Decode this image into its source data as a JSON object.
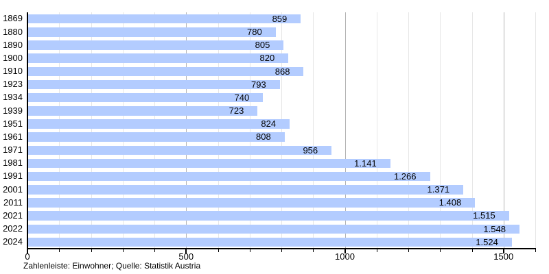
{
  "chart_data": {
    "type": "bar",
    "orientation": "horizontal",
    "title": "",
    "xlabel": "",
    "ylabel": "",
    "categories": [
      "1869",
      "1880",
      "1890",
      "1900",
      "1910",
      "1923",
      "1934",
      "1939",
      "1951",
      "1961",
      "1971",
      "1981",
      "1991",
      "2001",
      "2011",
      "2021",
      "2022",
      "2024"
    ],
    "values": [
      859,
      780,
      805,
      820,
      868,
      793,
      740,
      723,
      824,
      808,
      956,
      1141,
      1266,
      1371,
      1408,
      1515,
      1548,
      1524
    ],
    "value_labels": [
      "859",
      "780",
      "805",
      "820",
      "868",
      "793",
      "740",
      "723",
      "824",
      "808",
      "956",
      "1.141",
      "1.266",
      "1.371",
      "1.408",
      "1.515",
      "1.548",
      "1.524"
    ],
    "xlim": [
      0,
      1600
    ],
    "x_major_ticks": [
      0,
      500,
      1000,
      1500
    ],
    "x_major_tick_labels": [
      "0",
      "500",
      "1000",
      "1500"
    ],
    "x_minor_step": 100,
    "grid": true,
    "legend": false,
    "caption": "Zahlenleiste: Einwohner; Quelle: Statistik Austria",
    "colors": {
      "bar": "#b3ccff",
      "major_grid": "#b3b3b3",
      "minor_grid": "#e6e6e6",
      "axis": "#000000",
      "text": "#000000"
    }
  }
}
